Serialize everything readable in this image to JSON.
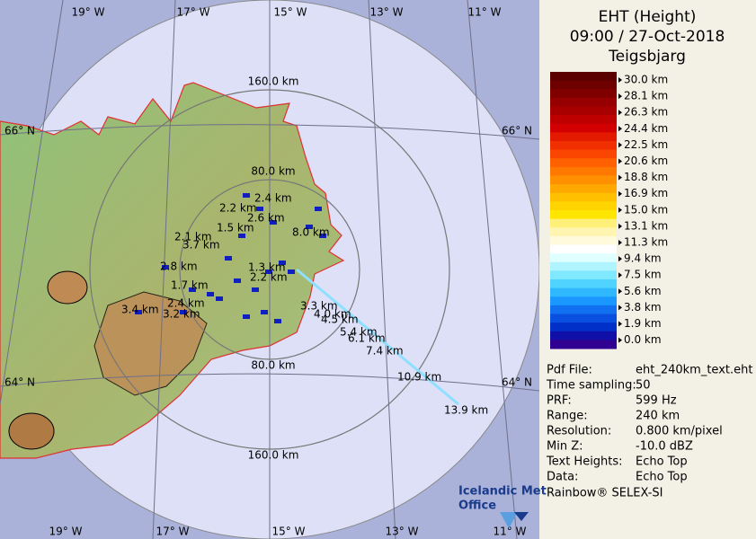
{
  "map": {
    "longitude_labels_top": [
      "19° W",
      "17° W",
      "15° W",
      "13° W",
      "11° W"
    ],
    "longitude_labels_bottom": [
      "19° W",
      "17° W",
      "15° W",
      "13° W",
      "11° W"
    ],
    "latitude_labels": [
      "66° N",
      "66° N",
      "64° N",
      "64° N"
    ],
    "range_labels": [
      "160.0 km",
      "80.0 km",
      "80.0 km",
      "160.0 km"
    ],
    "echo_top_labels": [
      "2.4 km",
      "2.2 km",
      "2.6 km",
      "1.5 km",
      "2.1 km",
      "3.7 km",
      "8.0 km",
      "2.8 km",
      "1.3 km",
      "2.2 km",
      "1.7 km",
      "3.4 km",
      "3.2 km",
      "2.4 km",
      "3.3 km",
      "4.0 km",
      "4.5 km",
      "5.4 km",
      "6.1 km",
      "7.4 km",
      "10.9 km",
      "13.9 km"
    ]
  },
  "panel": {
    "title": [
      "EHT (Height)",
      "09:00 / 27-Oct-2018",
      "Teigsbjarg"
    ],
    "legend": {
      "labels": [
        "30.0 km",
        "28.1 km",
        "26.3 km",
        "24.4 km",
        "22.5 km",
        "20.6 km",
        "18.8 km",
        "16.9 km",
        "15.0 km",
        "13.1 km",
        "11.3 km",
        "9.4 km",
        "7.5 km",
        "5.6 km",
        "3.8 km",
        "1.9 km",
        "0.0 km"
      ],
      "colors": [
        "#5a0000",
        "#6e0000",
        "#800000",
        "#960000",
        "#a80000",
        "#bf0000",
        "#d20000",
        "#e41a00",
        "#f03000",
        "#fa4600",
        "#ff6000",
        "#ff7800",
        "#ff9000",
        "#ffa800",
        "#ffc000",
        "#ffd400",
        "#ffe600",
        "#fff07a",
        "#fff5b0",
        "#fffadc",
        "#ffffff",
        "#e0ffff",
        "#b0f4ff",
        "#80e8ff",
        "#50d4ff",
        "#30b8ff",
        "#1a98ff",
        "#1070f0",
        "#0a50e0",
        "#0030c8",
        "#1010a8",
        "#300090"
      ]
    },
    "info": [
      [
        "Pdf File:",
        "eht_240km_text.eht"
      ],
      [
        "Time sampling:",
        "50"
      ],
      [
        "PRF:",
        "599 Hz"
      ],
      [
        "Range:",
        "240 km"
      ],
      [
        "Resolution:",
        "0.800 km/pixel"
      ],
      [
        "Min Z:",
        "-10.0 dBZ"
      ],
      [
        "Text Heights:",
        "Echo Top"
      ],
      [
        "Data:",
        "Echo Top"
      ]
    ],
    "footer": "Rainbow® SELEX-SI"
  },
  "logo": [
    "Icelandic Met",
    "Office"
  ]
}
